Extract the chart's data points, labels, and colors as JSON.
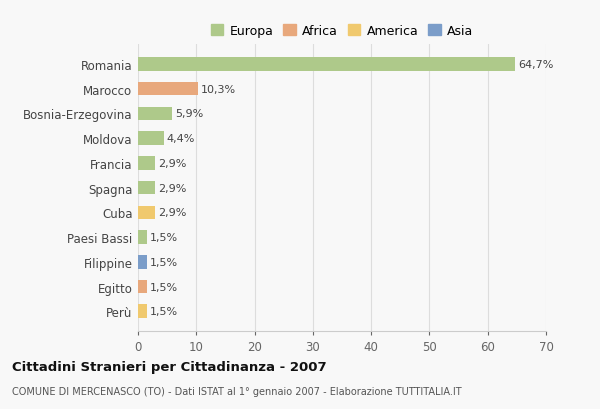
{
  "countries": [
    "Romania",
    "Marocco",
    "Bosnia-Erzegovina",
    "Moldova",
    "Francia",
    "Spagna",
    "Cuba",
    "Paesi Bassi",
    "Filippine",
    "Egitto",
    "Perù"
  ],
  "values": [
    64.7,
    10.3,
    5.9,
    4.4,
    2.9,
    2.9,
    2.9,
    1.5,
    1.5,
    1.5,
    1.5
  ],
  "labels": [
    "64,7%",
    "10,3%",
    "5,9%",
    "4,4%",
    "2,9%",
    "2,9%",
    "2,9%",
    "1,5%",
    "1,5%",
    "1,5%",
    "1,5%"
  ],
  "colors": [
    "#aec98a",
    "#e8a87c",
    "#aec98a",
    "#aec98a",
    "#aec98a",
    "#aec98a",
    "#f0c96e",
    "#aec98a",
    "#7b9dc9",
    "#e8a87c",
    "#f0c96e"
  ],
  "legend": {
    "labels": [
      "Europa",
      "Africa",
      "America",
      "Asia"
    ],
    "colors": [
      "#aec98a",
      "#e8a87c",
      "#f0c96e",
      "#7b9dc9"
    ]
  },
  "xlim": [
    0,
    70
  ],
  "xticks": [
    0,
    10,
    20,
    30,
    40,
    50,
    60,
    70
  ],
  "title": "Cittadini Stranieri per Cittadinanza - 2007",
  "subtitle": "COMUNE DI MERCENASCO (TO) - Dati ISTAT al 1° gennaio 2007 - Elaborazione TUTTITALIA.IT",
  "background_color": "#f8f8f8",
  "grid_color": "#dddddd",
  "bar_height": 0.55,
  "label_fontsize": 8,
  "ytick_fontsize": 8.5,
  "xtick_fontsize": 8.5,
  "legend_fontsize": 9,
  "title_fontsize": 9.5,
  "subtitle_fontsize": 7
}
